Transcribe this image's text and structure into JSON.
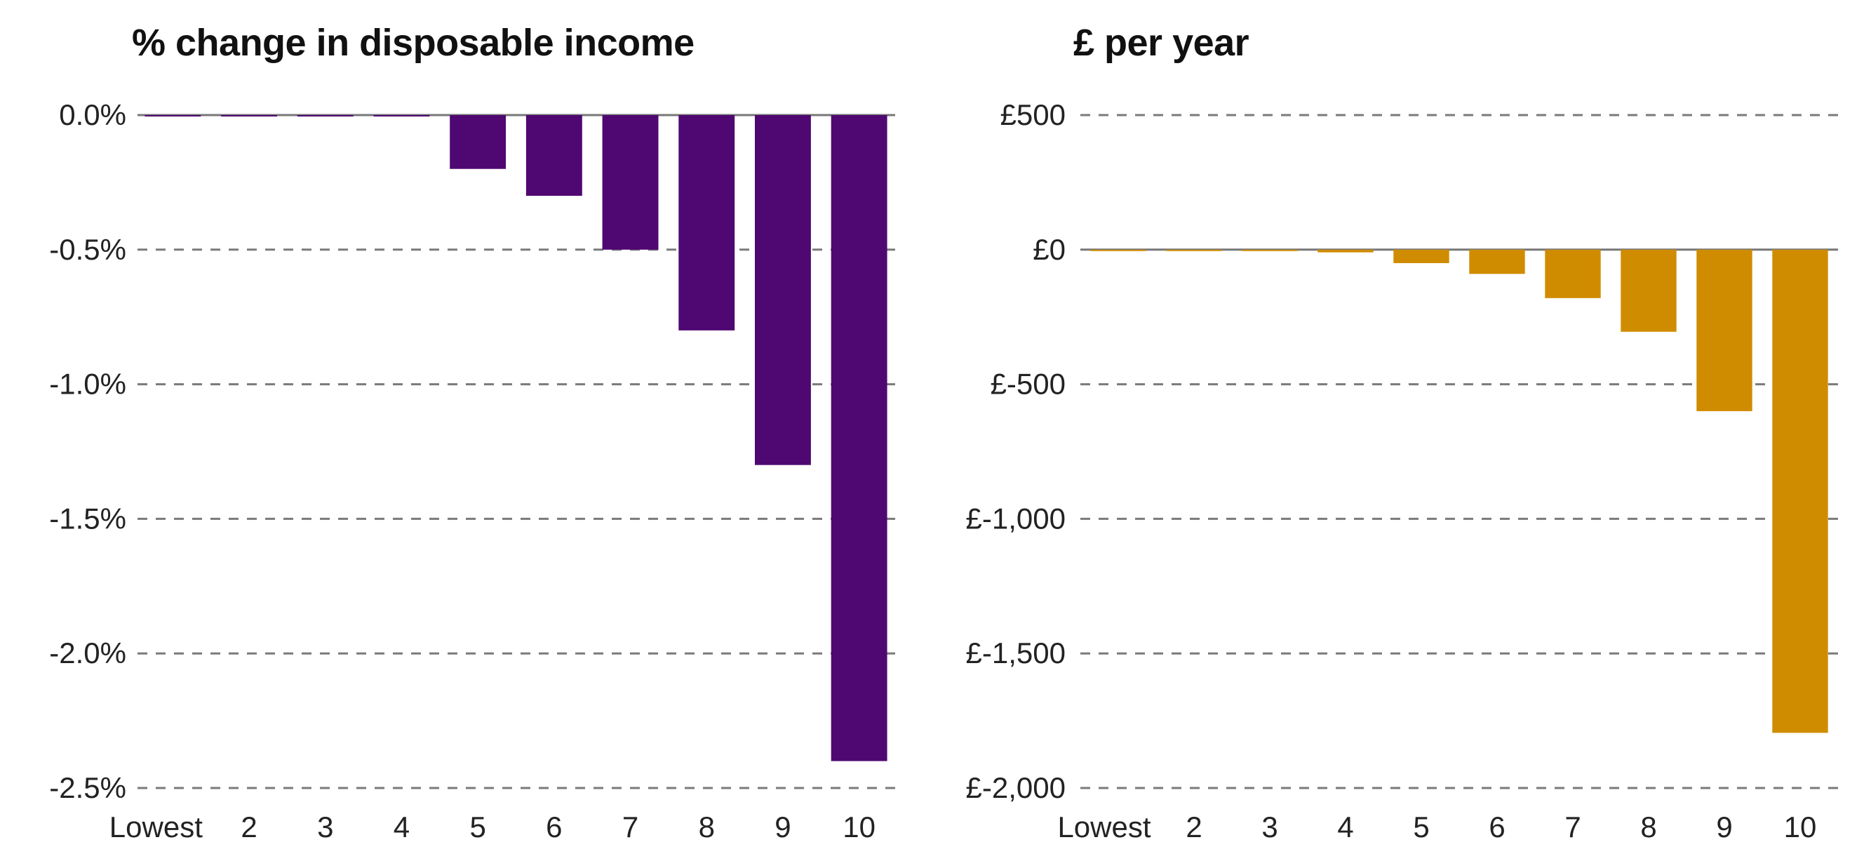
{
  "chart_data": [
    {
      "type": "bar",
      "title": "% change in disposable income",
      "categories": [
        "Lowest",
        "2",
        "3",
        "4",
        "5",
        "6",
        "7",
        "8",
        "9",
        "10"
      ],
      "values": [
        0.0,
        0.0,
        0.0,
        0.0,
        -0.2,
        -0.3,
        -0.5,
        -0.8,
        -1.3,
        -2.4
      ],
      "ylim": [
        -2.5,
        0.0
      ],
      "yticks": [
        0.0,
        -0.5,
        -1.0,
        -1.5,
        -2.0,
        -2.5
      ],
      "ytick_labels": [
        "0.0%",
        "-0.5%",
        "-1.0%",
        "-1.5%",
        "-2.0%",
        "-2.5%"
      ],
      "grid": true,
      "color": "#4f0872",
      "xlabel": "",
      "ylabel": ""
    },
    {
      "type": "bar",
      "title": "£ per year",
      "categories": [
        "Lowest",
        "2",
        "3",
        "4",
        "5",
        "6",
        "7",
        "8",
        "9",
        "10"
      ],
      "values": [
        -5,
        -5,
        -5,
        -10,
        -50,
        -90,
        -180,
        -305,
        -600,
        -1795
      ],
      "ylim": [
        -2000,
        500
      ],
      "yticks": [
        500,
        0,
        -500,
        -1000,
        -1500,
        -2000
      ],
      "ytick_labels": [
        "£500",
        "£0",
        "£-500",
        "£-1,000",
        "£-1,500",
        "£-2,000"
      ],
      "grid": true,
      "color": "#d08c00",
      "xlabel": "",
      "ylabel": ""
    }
  ]
}
